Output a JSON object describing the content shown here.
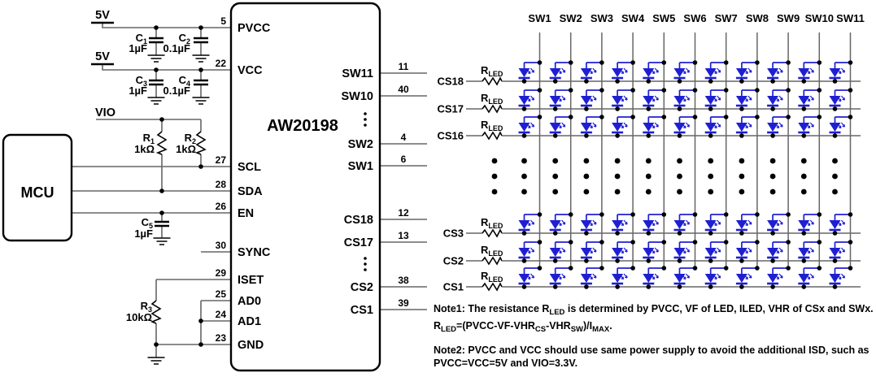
{
  "left_panel": {
    "mcu_label": "MCU",
    "chip_label": "AW20198",
    "rails": {
      "pvcc": "5V",
      "vcc": "5V",
      "vio": "VIO"
    },
    "components": {
      "c1": {
        "ref": "C",
        "sub": "1",
        "value": "1µF"
      },
      "c2": {
        "ref": "C",
        "sub": "2",
        "value": "0.1µF"
      },
      "c3": {
        "ref": "C",
        "sub": "3",
        "value": "1µF"
      },
      "c4": {
        "ref": "C",
        "sub": "4",
        "value": "0.1µF"
      },
      "c5": {
        "ref": "C",
        "sub": "5",
        "value": "1µF"
      },
      "r1": {
        "ref": "R",
        "sub": "1",
        "value": "1kΩ"
      },
      "r2": {
        "ref": "R",
        "sub": "2",
        "value": "1kΩ"
      },
      "r3": {
        "ref": "R",
        "sub": "3",
        "value": "10kΩ"
      }
    },
    "left_pins": [
      {
        "num": "5",
        "name": "PVCC"
      },
      {
        "num": "22",
        "name": "VCC"
      },
      {
        "num": "27",
        "name": "SCL"
      },
      {
        "num": "28",
        "name": "SDA"
      },
      {
        "num": "26",
        "name": "EN"
      },
      {
        "num": "30",
        "name": "SYNC"
      },
      {
        "num": "29",
        "name": "ISET"
      },
      {
        "num": "25",
        "name": "AD0"
      },
      {
        "num": "24",
        "name": "AD1"
      },
      {
        "num": "23",
        "name": "GND"
      }
    ],
    "sw_pins": [
      {
        "num": "11",
        "name": "SW11"
      },
      {
        "num": "40",
        "name": "SW10"
      },
      {
        "num": "4",
        "name": "SW2"
      },
      {
        "num": "6",
        "name": "SW1"
      }
    ],
    "cs_pins": [
      {
        "num": "12",
        "name": "CS18"
      },
      {
        "num": "13",
        "name": "CS17"
      },
      {
        "num": "38",
        "name": "CS2"
      },
      {
        "num": "39",
        "name": "CS1"
      }
    ]
  },
  "matrix": {
    "sw_labels": [
      "SW1",
      "SW2",
      "SW3",
      "SW4",
      "SW5",
      "SW6",
      "SW7",
      "SW8",
      "SW9",
      "SW10",
      "SW11"
    ],
    "cs_rows_top": [
      "CS18",
      "CS17",
      "CS16"
    ],
    "cs_rows_bottom": [
      "CS3",
      "CS2",
      "CS1"
    ],
    "rled": {
      "main": "R",
      "sub": "LED"
    },
    "led_color": "#1f1fd2",
    "wire_color": "#666666"
  },
  "notes": {
    "note1": [
      {
        "t": "Note1: The resistance R"
      },
      {
        "s": "LED"
      },
      {
        "t": " is determined by PVCC, VF of LED, ILED, VHR of CSx and SWx. R"
      },
      {
        "s": "LED"
      },
      {
        "t": "=(PVCC-VF-VHR"
      },
      {
        "s": "CS"
      },
      {
        "t": "-VHR"
      },
      {
        "s": "SW"
      },
      {
        "t": ")/I"
      },
      {
        "s": "MAX"
      },
      {
        "t": "."
      }
    ],
    "note2": [
      {
        "t": "Note2: PVCC and VCC should use same power supply to avoid the additional ISD, such as PVCC=VCC=5V and VIO=3.3V."
      }
    ]
  }
}
